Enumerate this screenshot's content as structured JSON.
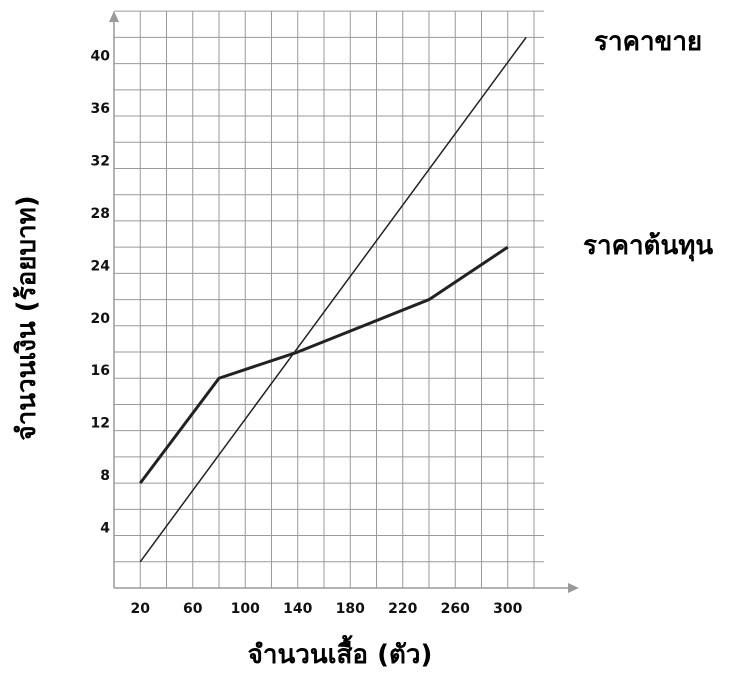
{
  "chart_data": {
    "type": "line",
    "xlabel": "จำนวนเสื้อ (ตัว)",
    "ylabel": "จำนวนเงิน (ร้อยบาท)",
    "xlim": [
      0,
      320
    ],
    "ylim": [
      0,
      44
    ],
    "x_ticks": [
      20,
      60,
      100,
      140,
      180,
      220,
      260,
      300
    ],
    "y_ticks": [
      4,
      8,
      12,
      16,
      20,
      24,
      28,
      32,
      36,
      40
    ],
    "grid": true,
    "series": [
      {
        "name": "ราคาขาย",
        "color": "#222222",
        "x": [
          20,
          314
        ],
        "y": [
          2,
          42
        ]
      },
      {
        "name": "ราคาต้นทุน",
        "color": "#222222",
        "x": [
          20,
          80,
          140,
          240,
          300
        ],
        "y": [
          8,
          16,
          18,
          22,
          26
        ]
      }
    ]
  }
}
